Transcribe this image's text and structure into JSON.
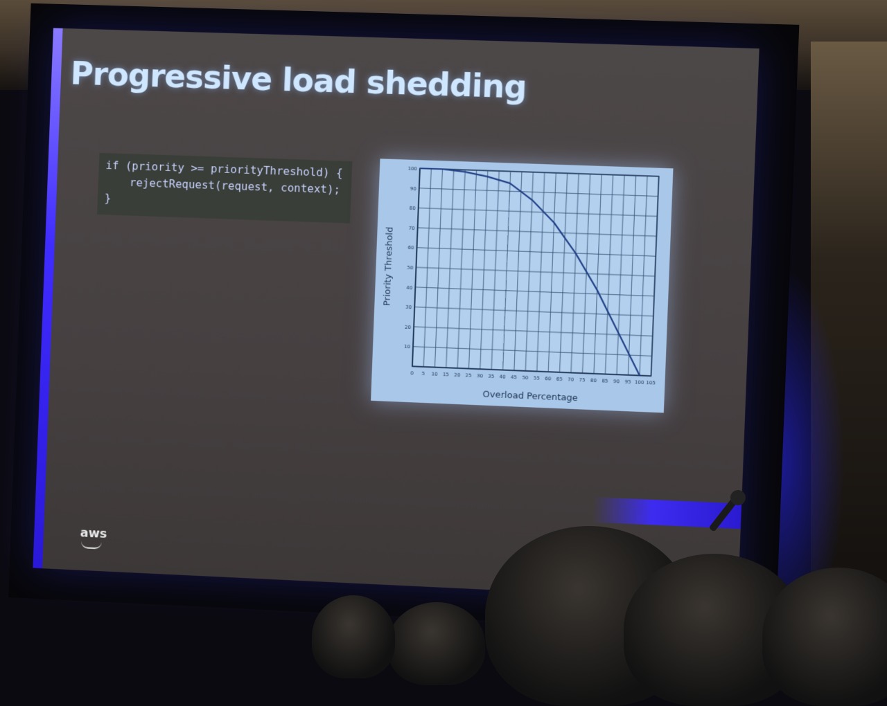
{
  "slide": {
    "title": "Progressive load shedding",
    "code_lines": [
      "if (priority >= priorityThreshold) {",
      "rejectRequest(request, context);",
      "}"
    ],
    "logo_text": "aws"
  },
  "chart_data": {
    "type": "line",
    "xlabel": "Overload Percentage",
    "ylabel": "Priority Threshold",
    "xlim": [
      0,
      105
    ],
    "ylim": [
      0,
      100
    ],
    "x_ticks": [
      0,
      5,
      10,
      15,
      20,
      25,
      30,
      35,
      40,
      45,
      50,
      55,
      60,
      65,
      70,
      75,
      80,
      85,
      90,
      95,
      100,
      105
    ],
    "y_ticks": [
      10,
      20,
      30,
      40,
      50,
      60,
      70,
      80,
      90,
      100
    ],
    "grid": true,
    "series": [
      {
        "x": [
          0,
          10,
          20,
          30,
          40,
          50,
          60,
          70,
          80,
          90,
          100
        ],
        "y": [
          100,
          100,
          99,
          97,
          94,
          86,
          75,
          60,
          42,
          21,
          0
        ]
      }
    ],
    "line_color": "#1f3f86"
  }
}
